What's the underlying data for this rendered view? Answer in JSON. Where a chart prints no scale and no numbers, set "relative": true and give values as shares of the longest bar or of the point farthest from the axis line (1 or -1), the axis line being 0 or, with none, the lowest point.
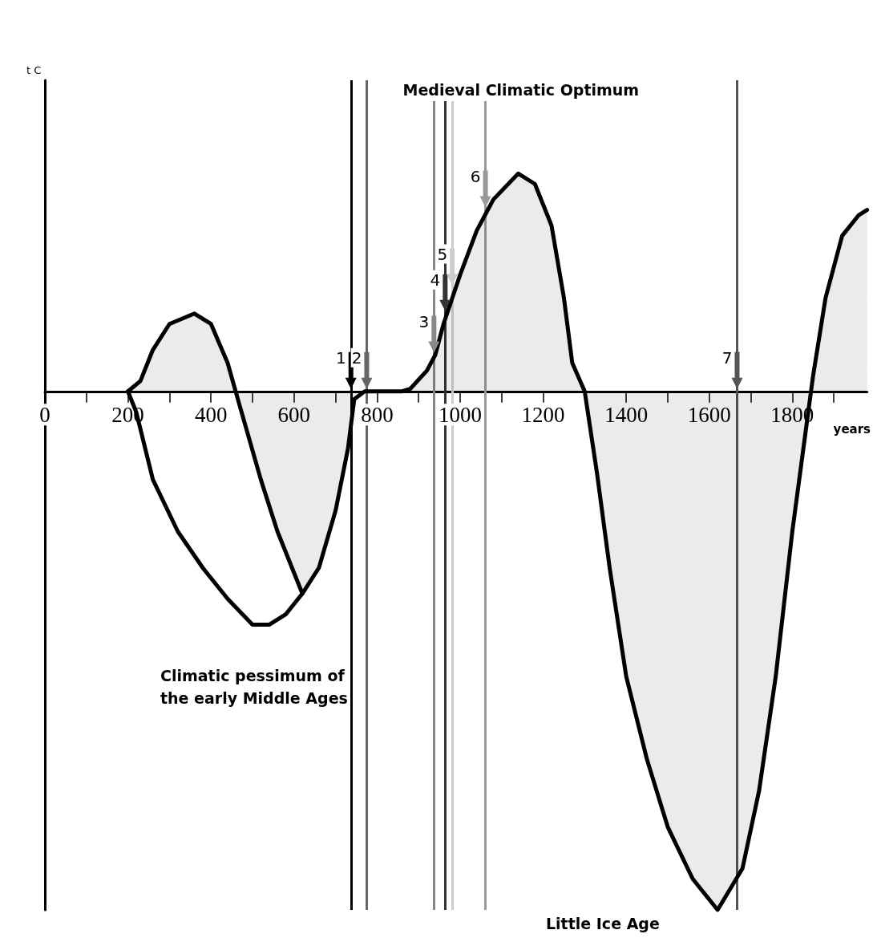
{
  "chart_data": {
    "type": "area",
    "relative": true,
    "xlabel": "years",
    "xlim": [
      0,
      1980
    ],
    "xticks": [
      0,
      {
        "value": 100,
        "label": null
      },
      200,
      {
        "value": 300,
        "label": null
      },
      400,
      {
        "value": 500,
        "label": null
      },
      600,
      {
        "value": 700,
        "label": null
      },
      800,
      {
        "value": 900,
        "label": null
      },
      1000,
      {
        "value": 1100,
        "label": null
      },
      1200,
      {
        "value": 1300,
        "label": null
      },
      1400,
      {
        "value": 1500,
        "label": null
      },
      1600,
      {
        "value": 1700,
        "label": null
      },
      1800,
      {
        "value": 1900,
        "label": null
      }
    ],
    "series": [
      {
        "color": "#000000",
        "x": [
          200,
          230,
          260,
          300,
          360,
          400,
          440,
          470,
          520,
          560,
          620,
          660,
          700,
          730,
          745,
          770,
          860,
          880,
          920,
          940,
          960,
          1000,
          1040,
          1080,
          1140,
          1180,
          1220,
          1250,
          1270,
          1300,
          1330,
          1360,
          1400,
          1450,
          1500,
          1560,
          1620,
          1680,
          1720,
          1760,
          1800,
          1830,
          1850,
          1880,
          1920,
          1960,
          1980
        ],
        "values": [
          0,
          0.02,
          0.08,
          0.13,
          0.15,
          0.13,
          0.055,
          -0.03,
          -0.17,
          -0.27,
          -0.39,
          -0.34,
          -0.23,
          -0.11,
          -0.015,
          0,
          0,
          0.005,
          0.04,
          0.07,
          0.13,
          0.225,
          0.31,
          0.37,
          0.42,
          0.4,
          0.32,
          0.18,
          0.055,
          0,
          -0.16,
          -0.34,
          -0.55,
          -0.71,
          -0.84,
          -0.94,
          -1,
          -0.92,
          -0.77,
          -0.55,
          -0.27,
          -0.09,
          0.03,
          0.18,
          0.3,
          0.34,
          0.35
        ]
      },
      {
        "type": "line",
        "color": "#000000",
        "x": [
          200,
          220,
          260,
          320,
          380,
          440,
          500,
          540,
          580,
          620
        ],
        "values": [
          0,
          -0.04,
          -0.17,
          -0.27,
          -0.34,
          -0.4,
          -0.45,
          -0.45,
          -0.43,
          -0.39
        ]
      }
    ],
    "ref_lines": [
      {
        "axis": "x",
        "value": 737,
        "color": "#000000"
      },
      {
        "axis": "x",
        "value": 775,
        "color": "#666666"
      },
      {
        "axis": "x",
        "value": 937,
        "color": "#888888"
      },
      {
        "axis": "x",
        "value": 964,
        "color": "#333333"
      },
      {
        "axis": "x",
        "value": 981,
        "color": "#cccccc"
      },
      {
        "axis": "x",
        "value": 1061,
        "color": "#999999"
      },
      {
        "axis": "x",
        "value": 1667,
        "color": "#555555"
      }
    ],
    "annotations": [
      {
        "text": "1",
        "x": 737,
        "y": 0
      },
      {
        "text": "2",
        "x": 775,
        "y": 0
      },
      {
        "text": "3",
        "x": 937,
        "y": 0.07
      },
      {
        "text": "4",
        "x": 964,
        "y": 0.15
      },
      {
        "text": "5",
        "x": 981,
        "y": 0.2
      },
      {
        "text": "6",
        "x": 1061,
        "y": 0.35
      },
      {
        "text": "7",
        "x": 1667,
        "y": 0
      },
      "Medieval Climatic Optimum",
      "Climatic pessimum of\nthe early Middle Ages",
      "Little Ice Age",
      "t C"
    ],
    "grid": false,
    "marker": "none"
  }
}
